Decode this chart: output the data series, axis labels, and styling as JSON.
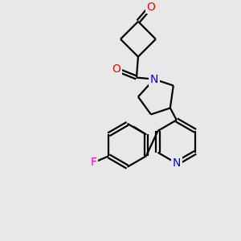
{
  "bg_color": "#e8e8e8",
  "bond_color": "#000000",
  "bond_width": 1.6,
  "atom_colors": {
    "N": "#0000ee",
    "O": "#ff0000",
    "F": "#ff00cc",
    "C": "#000000"
  },
  "figsize": [
    3.0,
    3.0
  ],
  "dpi": 100
}
